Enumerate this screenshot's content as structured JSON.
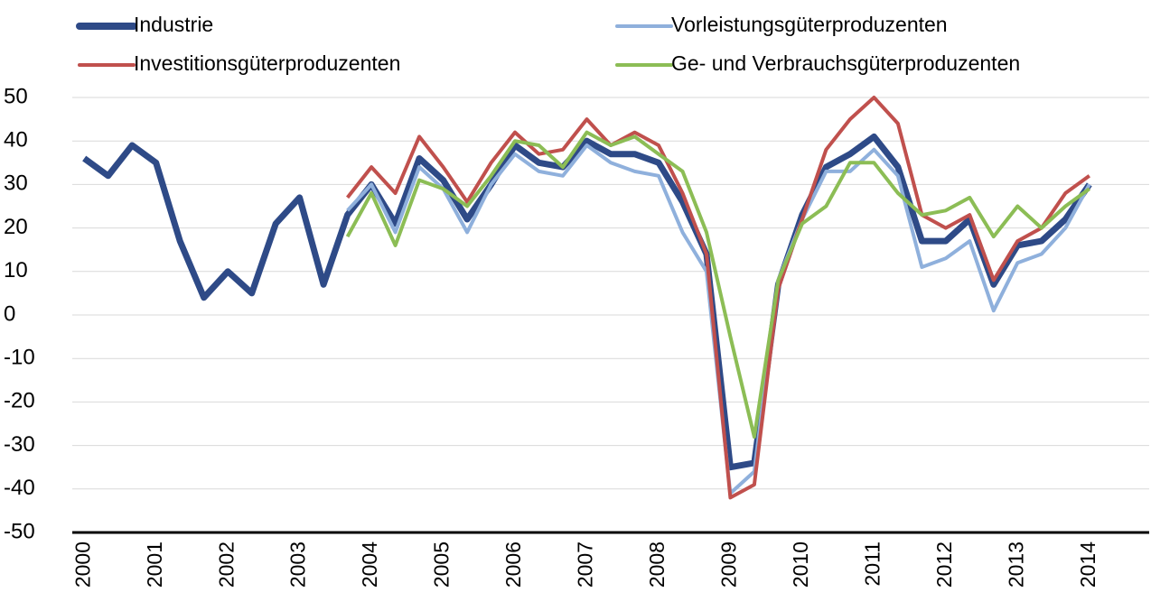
{
  "chart_data": {
    "type": "line",
    "categories": [
      "2000",
      null,
      null,
      "2001",
      null,
      null,
      "2002",
      null,
      null,
      "2003",
      null,
      null,
      "2004",
      null,
      null,
      "2005",
      null,
      null,
      "2006",
      null,
      null,
      "2007",
      null,
      null,
      "2008",
      null,
      null,
      "2009",
      null,
      null,
      "2010",
      null,
      null,
      "2011",
      null,
      null,
      "2012",
      null,
      null,
      "2013",
      null,
      null,
      "2014",
      null,
      null
    ],
    "series": [
      {
        "name": "Industrie",
        "color": "#2e4a87",
        "values": [
          36,
          32,
          39,
          35,
          17,
          4,
          10,
          5,
          21,
          27,
          7,
          23,
          30,
          21,
          36,
          31,
          22,
          30,
          39,
          35,
          34,
          40,
          37,
          37,
          35,
          26,
          14,
          -35,
          -34,
          7,
          23,
          34,
          37,
          41,
          34,
          17,
          17,
          22,
          7,
          16,
          17,
          22,
          30,
          null,
          null
        ]
      },
      {
        "name": "Vorleistungsgüterproduzenten",
        "color": "#8fb0dc",
        "values": [
          null,
          null,
          null,
          null,
          null,
          null,
          null,
          null,
          null,
          null,
          null,
          24,
          30,
          19,
          34,
          29,
          19,
          30,
          37,
          33,
          32,
          39,
          35,
          33,
          32,
          19,
          10,
          -41,
          -36,
          8,
          22,
          33,
          33,
          38,
          32,
          11,
          13,
          17,
          1,
          12,
          14,
          20,
          30,
          null,
          null
        ]
      },
      {
        "name": "Investitionsgüterproduzenten",
        "color": "#c0504d",
        "values": [
          null,
          null,
          null,
          null,
          null,
          null,
          null,
          null,
          null,
          null,
          null,
          27,
          34,
          28,
          41,
          34,
          26,
          35,
          42,
          37,
          38,
          45,
          39,
          42,
          39,
          28,
          14,
          -42,
          -39,
          6,
          22,
          38,
          45,
          50,
          44,
          23,
          20,
          23,
          8,
          17,
          20,
          28,
          32,
          null,
          null
        ]
      },
      {
        "name": "Ge- und Verbrauchsgüterproduzenten",
        "color": "#8cbd55",
        "values": [
          null,
          null,
          null,
          null,
          null,
          null,
          null,
          null,
          null,
          null,
          null,
          18,
          28,
          16,
          31,
          29,
          25,
          32,
          40,
          39,
          34,
          42,
          39,
          41,
          37,
          33,
          19,
          -5,
          -28,
          8,
          21,
          25,
          35,
          35,
          28,
          23,
          24,
          27,
          18,
          25,
          20,
          25,
          29,
          null,
          null
        ]
      }
    ],
    "ylim": [
      -50,
      50
    ],
    "yticks": [
      -50,
      -40,
      -30,
      -20,
      -10,
      0,
      10,
      20,
      30,
      40,
      50
    ],
    "grid": true,
    "legend": "top"
  }
}
